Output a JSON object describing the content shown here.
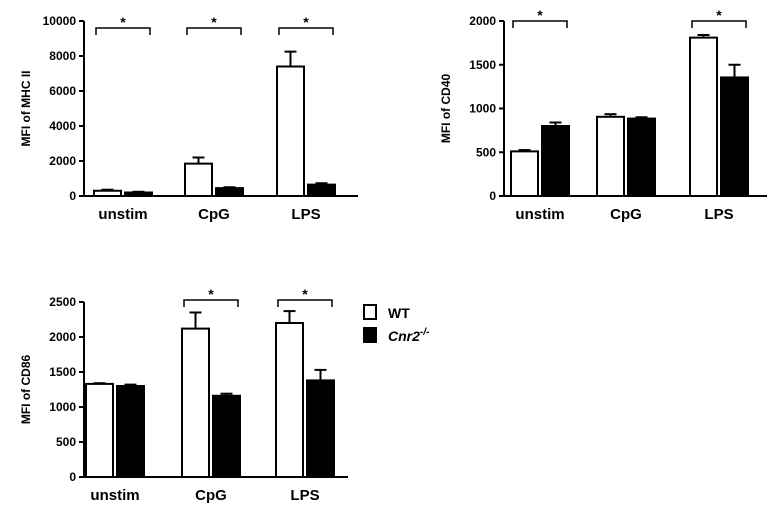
{
  "legend": {
    "items": [
      {
        "label": "WT",
        "fill": "#ffffff"
      },
      {
        "label": "Cnr2",
        "superscript": "-/-",
        "fill": "#000000"
      }
    ]
  },
  "chart_data": [
    {
      "type": "bar",
      "ylabel": "MFI of MHC II",
      "ylim": [
        0,
        10000
      ],
      "yticks": [
        0,
        2000,
        4000,
        6000,
        8000,
        10000
      ],
      "categories": [
        "unstim",
        "CpG",
        "LPS"
      ],
      "series": [
        {
          "name": "WT",
          "color": "#ffffff",
          "values": [
            300,
            1850,
            7400
          ],
          "errors": [
            60,
            350,
            850
          ]
        },
        {
          "name": "Cnr2-/-",
          "color": "#000000",
          "values": [
            200,
            450,
            650
          ],
          "errors": [
            40,
            50,
            80
          ]
        }
      ],
      "significance": [
        {
          "category": "unstim",
          "label": "*"
        },
        {
          "category": "CpG",
          "label": "*"
        },
        {
          "category": "LPS",
          "label": "*"
        }
      ]
    },
    {
      "type": "bar",
      "ylabel": "MFI of CD40",
      "ylim": [
        0,
        2000
      ],
      "yticks": [
        0,
        500,
        1000,
        1500,
        2000
      ],
      "categories": [
        "unstim",
        "CpG",
        "LPS"
      ],
      "series": [
        {
          "name": "WT",
          "color": "#ffffff",
          "values": [
            510,
            905,
            1810
          ],
          "errors": [
            15,
            30,
            30
          ]
        },
        {
          "name": "Cnr2-/-",
          "color": "#000000",
          "values": [
            800,
            885,
            1355
          ],
          "errors": [
            40,
            15,
            145
          ]
        }
      ],
      "significance": [
        {
          "category": "unstim",
          "label": "*"
        },
        {
          "category": "LPS",
          "label": "*"
        }
      ]
    },
    {
      "type": "bar",
      "ylabel": "MFI of CD86",
      "ylim": [
        0,
        2500
      ],
      "yticks": [
        0,
        500,
        1000,
        1500,
        2000,
        2500
      ],
      "categories": [
        "unstim",
        "CpG",
        "LPS"
      ],
      "series": [
        {
          "name": "WT",
          "color": "#ffffff",
          "values": [
            1330,
            2120,
            2200
          ],
          "errors": [
            10,
            230,
            170
          ]
        },
        {
          "name": "Cnr2-/-",
          "color": "#000000",
          "values": [
            1300,
            1160,
            1380
          ],
          "errors": [
            20,
            30,
            150
          ]
        }
      ],
      "significance": [
        {
          "category": "CpG",
          "label": "*"
        },
        {
          "category": "LPS",
          "label": "*"
        }
      ]
    }
  ]
}
